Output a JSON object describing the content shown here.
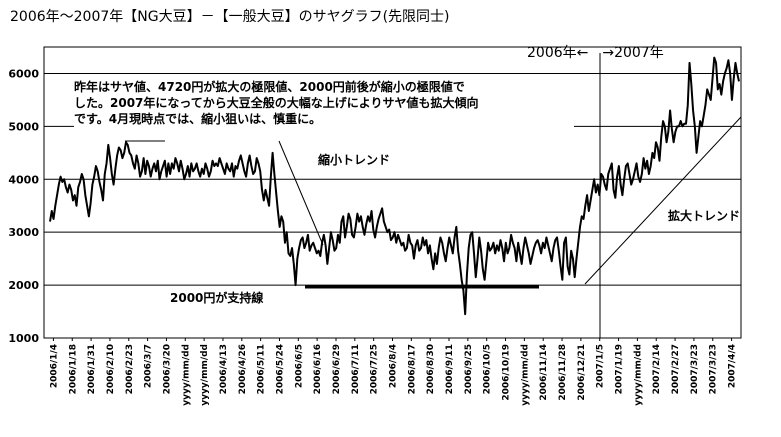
{
  "chart_data": {
    "type": "line",
    "title": "2006年～2007年【NG大豆】－【一般大豆】のサヤグラフ(先限同士)",
    "y_ticks": [
      "1000",
      "2000",
      "3000",
      "4000",
      "5000",
      "6000"
    ],
    "ylim": [
      1000,
      6500
    ],
    "x_tick_labels": [
      "2006/1/4",
      "2006/1/18",
      "2006/1/31",
      "2006/2/10",
      "2006/2/23",
      "2006/3/7",
      "2006/3/20",
      "yyyy/mm/dd",
      "yyyy/mm/dd",
      "2006/4/13",
      "2006/4/26",
      "2006/5/11",
      "2006/5/24",
      "2006/6/5",
      "2006/6/16",
      "2006/6/29",
      "2006/7/11",
      "2006/7/25",
      "2006/8/4",
      "2006/8/17",
      "2006/8/30",
      "2006/9/11",
      "2006/9/25",
      "2006/10/5",
      "2006/10/19",
      "yyyy/mm/dd",
      "2006/11/14",
      "2006/11/28",
      "2006/12/21",
      "2007/1/5",
      "2007/1/19",
      "yyyy/mm/dd",
      "2007/2/14",
      "2007/2/27",
      "2007/3/23",
      "2007/3/23",
      "2007/4/4"
    ],
    "grid": "horizontal",
    "series": [
      {
        "values": [
          3200,
          3400,
          3250,
          3500,
          3700,
          3900,
          4050,
          3950,
          4000,
          3850,
          3750,
          3900,
          3800,
          3600,
          3700,
          3500,
          3850,
          3950,
          4100,
          4000,
          3700,
          3500,
          3300,
          3550,
          3900,
          4050,
          4250,
          4150,
          3950,
          3800,
          3600,
          4100,
          4300,
          4650,
          4400,
          4100,
          3900,
          4200,
          4450,
          4600,
          4550,
          4400,
          4500,
          4700,
          4650,
          4500,
          4450,
          4300,
          4200,
          4450,
          4300,
          4050,
          4150,
          4400,
          4100,
          4350,
          4250,
          4050,
          4200,
          4300,
          4150,
          4350,
          4000,
          4150,
          4250,
          4350,
          4050,
          4300,
          4100,
          4300,
          4200,
          4400,
          4300,
          4150,
          4350,
          4200,
          4000,
          4100,
          4250,
          4050,
          4300,
          4150,
          4200,
          4300,
          4150,
          4050,
          4200,
          4100,
          4300,
          4200,
          4050,
          4150,
          4350,
          4250,
          4300,
          4250,
          4400,
          4300,
          4200,
          4100,
          4300,
          4200,
          4150,
          4300,
          4050,
          4250,
          4200,
          4350,
          4450,
          4300,
          4150,
          4050,
          4300,
          4450,
          4250,
          4100,
          4150,
          4400,
          4300,
          4150,
          3800,
          3600,
          3800,
          3650,
          3500,
          4050,
          4500,
          4100,
          3750,
          3400,
          3100,
          3300,
          3200,
          2800,
          3000,
          2600,
          2550,
          2700,
          2400,
          2000,
          2500,
          2700,
          2850,
          2900,
          2700,
          2800,
          2950,
          2650,
          2750,
          2800,
          2700,
          2600,
          2650,
          2550,
          2800,
          2950,
          2750,
          2400,
          2700,
          3000,
          2850,
          2650,
          2700,
          2950,
          2800,
          3200,
          3300,
          2900,
          3100,
          3350,
          3250,
          2950,
          2900,
          3100,
          3350,
          3200,
          3300,
          3100,
          2950,
          3150,
          3300,
          3200,
          3400,
          3050,
          2900,
          3100,
          3250,
          3350,
          3450,
          3200,
          3100,
          3000,
          3050,
          2850,
          2900,
          3000,
          2800,
          2950,
          2850,
          2750,
          2800,
          2650,
          2700,
          2950,
          2800,
          2750,
          2500,
          2750,
          2850,
          2650,
          2700,
          2900,
          2750,
          2850,
          2600,
          2750,
          2500,
          2300,
          2600,
          2400,
          2700,
          2900,
          2800,
          2600,
          2450,
          2700,
          2900,
          2750,
          2600,
          2900,
          3100,
          2650,
          2400,
          2100,
          1900,
          1450,
          2200,
          2700,
          2950,
          3000,
          2600,
          2150,
          2500,
          2900,
          2650,
          2300,
          2100,
          2450,
          2800,
          2650,
          2700,
          2800,
          2600,
          2750,
          2650,
          2850,
          2700,
          2450,
          2800,
          2600,
          2700,
          2950,
          2800,
          2700,
          2450,
          2800,
          2600,
          2400,
          2700,
          2900,
          2750,
          2600,
          2400,
          2550,
          2700,
          2800,
          2850,
          2750,
          2600,
          2800,
          2700,
          2900,
          2750,
          2600,
          2450,
          2700,
          2850,
          2900,
          2650,
          2350,
          2100,
          2800,
          2900,
          2350,
          2200,
          2650,
          2500,
          2150,
          2500,
          2800,
          3100,
          3300,
          3250,
          3500,
          3700,
          3400,
          3600,
          3800,
          4000,
          3750,
          3900,
          3700,
          4100,
          4050,
          3900,
          3800,
          4100,
          4200,
          4300,
          3800,
          3650,
          4050,
          4250,
          3900,
          3700,
          4000,
          4250,
          4300,
          4100,
          3900,
          4000,
          4150,
          4300,
          4050,
          3950,
          4100,
          4400,
          4200,
          4350,
          4100,
          4250,
          4500,
          4400,
          4700,
          4600,
          4350,
          4800,
          5100,
          5000,
          4700,
          4900,
          5300,
          4950,
          4700,
          4900,
          5000,
          5000,
          5100,
          5000,
          5050,
          5050,
          5400,
          6200,
          5800,
          5300,
          5000,
          4500,
          4800,
          5100,
          5000,
          5200,
          5400,
          5700,
          5600,
          5500,
          5900,
          6300,
          6200,
          5700,
          5800,
          5600,
          5850,
          6000,
          6100,
          6250,
          6000,
          5500,
          5900,
          6200,
          6000,
          5850
        ]
      }
    ],
    "annotations": {
      "note_line1": "昨年はサヤ値、4720円が拡大の極限値、2000円前後が縮小の極限値で",
      "note_line2": "した。2007年になってから大豆全般の大幅な上げによりサヤ値も拡大傾向",
      "note_line3": "です。4月現時点では、縮小狙いは、慎重に。",
      "shrink_trend": "縮小トレンド",
      "expand_trend": "拡大トレンド",
      "support_line": "2000円が支持線",
      "year_divider": "2006年←　→2007年"
    }
  }
}
